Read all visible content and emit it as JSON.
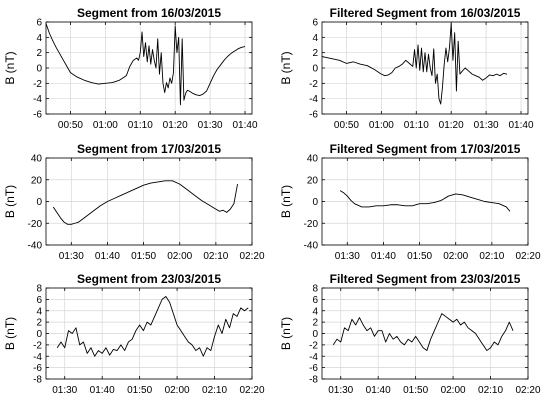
{
  "chart_data": [
    {
      "type": "line",
      "title": "Segment from 16/03/2015",
      "ylabel": "B (nT)",
      "xlabel": "",
      "x_unit": "HH:MM",
      "xlim": [
        "00:43",
        "01:42"
      ],
      "ylim": [
        -6,
        6
      ],
      "xticks": [
        "00:50",
        "01:00",
        "01:10",
        "01:20",
        "01:30",
        "01:40"
      ],
      "yticks": [
        -6,
        -4,
        -2,
        0,
        2,
        4,
        6
      ],
      "grid": true,
      "series": [
        {
          "x": [
            "00:43",
            "00:44",
            "00:45",
            "00:46",
            "00:47",
            "00:48",
            "00:49",
            "00:50",
            "00:52",
            "00:54",
            "00:56",
            "00:58",
            "01:00",
            "01:02",
            "01:04",
            "01:05",
            "01:06",
            "01:07",
            "01:08",
            "01:09",
            "01:09.5",
            "01:10",
            "01:10.5",
            "01:11",
            "01:11.5",
            "01:12",
            "01:12.5",
            "01:13",
            "01:13.5",
            "01:14",
            "01:14.5",
            "01:15",
            "01:15.5",
            "01:16",
            "01:16.5",
            "01:17",
            "01:17.5",
            "01:18",
            "01:18.5",
            "01:19",
            "01:19.5",
            "01:20",
            "01:20.5",
            "01:21",
            "01:21.5",
            "01:22",
            "01:22.5",
            "01:23",
            "01:23.5",
            "01:24",
            "01:25",
            "01:26",
            "01:27",
            "01:28",
            "01:29",
            "01:30",
            "01:31",
            "01:32",
            "01:33",
            "01:34",
            "01:35",
            "01:36",
            "01:37",
            "01:38",
            "01:39",
            "01:40"
          ],
          "y": [
            5.8,
            4.5,
            3.5,
            2.6,
            1.8,
            1.0,
            0.2,
            -0.6,
            -1.2,
            -1.6,
            -1.9,
            -2.1,
            -2.0,
            -1.9,
            -1.6,
            -1.3,
            -1.0,
            0.2,
            1.0,
            1.3,
            1.0,
            2.0,
            4.7,
            1.5,
            3.3,
            0.8,
            2.9,
            0.5,
            2.4,
            1.0,
            0.0,
            3.8,
            -0.8,
            2.0,
            -2.0,
            -3.2,
            -1.9,
            -2.6,
            -1.3,
            -2.0,
            -0.6,
            5.5,
            2.0,
            4.0,
            -4.8,
            3.8,
            -4.2,
            -3.3,
            -2.9,
            -3.0,
            -3.3,
            -3.5,
            -3.6,
            -3.4,
            -3.0,
            -2.0,
            -1.0,
            -0.2,
            0.4,
            1.0,
            1.5,
            1.9,
            2.2,
            2.5,
            2.7,
            2.8
          ]
        }
      ]
    },
    {
      "type": "line",
      "title": "Filtered Segment from 16/03/2015",
      "ylabel": "B (nT)",
      "xlabel": "",
      "x_unit": "HH:MM",
      "xlim": [
        "00:43",
        "01:42"
      ],
      "ylim": [
        -6,
        6
      ],
      "xticks": [
        "00:50",
        "01:00",
        "01:10",
        "01:20",
        "01:30",
        "01:40"
      ],
      "yticks": [
        -6,
        -4,
        -2,
        0,
        2,
        4,
        6
      ],
      "grid": true,
      "series": [
        {
          "x": [
            "00:43",
            "00:44",
            "00:46",
            "00:48",
            "00:50",
            "00:52",
            "00:54",
            "00:56",
            "00:58",
            "01:00",
            "01:01",
            "01:02",
            "01:03",
            "01:04",
            "01:05",
            "01:06",
            "01:07",
            "01:08",
            "01:09",
            "01:09.5",
            "01:10",
            "01:10.5",
            "01:11",
            "01:11.5",
            "01:12",
            "01:12.5",
            "01:13",
            "01:13.5",
            "01:14",
            "01:14.5",
            "01:15",
            "01:15.5",
            "01:16",
            "01:16.5",
            "01:17",
            "01:17.5",
            "01:18",
            "01:18.5",
            "01:19",
            "01:19.5",
            "01:20",
            "01:20.5",
            "01:21",
            "01:21.5",
            "01:22",
            "01:22.5",
            "01:23",
            "01:24",
            "01:25",
            "01:26",
            "01:27",
            "01:28",
            "01:29",
            "01:30",
            "01:31",
            "01:32",
            "01:33",
            "01:34",
            "01:35",
            "01:36"
          ],
          "y": [
            1.5,
            1.4,
            1.2,
            1.0,
            0.6,
            0.8,
            0.5,
            0.3,
            -0.2,
            -0.8,
            -1.0,
            -0.9,
            -0.6,
            0.0,
            0.2,
            0.5,
            1.0,
            0.6,
            0.2,
            2.4,
            0.0,
            3.0,
            -0.3,
            2.6,
            -0.5,
            2.0,
            -0.5,
            1.8,
            0.0,
            -1.0,
            2.5,
            -2.0,
            -0.8,
            -4.0,
            -4.7,
            -2.5,
            0.5,
            2.6,
            0.8,
            2.6,
            5.8,
            1.0,
            4.6,
            -3.0,
            3.5,
            -0.8,
            -0.5,
            0.0,
            -0.4,
            -0.8,
            -1.0,
            -1.2,
            -1.6,
            -1.3,
            -0.9,
            -1.0,
            -0.8,
            -1.0,
            -0.7,
            -0.8
          ]
        }
      ]
    },
    {
      "type": "line",
      "title": "Segment from 17/03/2015",
      "ylabel": "B (nT)",
      "xlabel": "",
      "x_unit": "HH:MM",
      "xlim": [
        "01:23",
        "02:20"
      ],
      "ylim": [
        -40,
        40
      ],
      "xticks": [
        "01:30",
        "01:40",
        "01:50",
        "02:00",
        "02:10",
        "02:20"
      ],
      "yticks": [
        -40,
        -20,
        0,
        20,
        40
      ],
      "grid": true,
      "series": [
        {
          "x": [
            "01:25",
            "01:26",
            "01:27",
            "01:28",
            "01:29",
            "01:30",
            "01:31",
            "01:32",
            "01:34",
            "01:36",
            "01:38",
            "01:40",
            "01:42",
            "01:44",
            "01:46",
            "01:48",
            "01:50",
            "01:52",
            "01:54",
            "01:56",
            "01:58",
            "02:00",
            "02:02",
            "02:04",
            "02:06",
            "02:08",
            "02:10",
            "02:11",
            "02:12",
            "02:13",
            "02:14",
            "02:15",
            "02:16"
          ],
          "y": [
            -5,
            -10,
            -15,
            -19,
            -21,
            -21,
            -20,
            -19,
            -14,
            -9,
            -4,
            0,
            3,
            6,
            9,
            12,
            15,
            17,
            18,
            19,
            19,
            16,
            11,
            6,
            1,
            -3,
            -7,
            -9,
            -8,
            -10,
            -7,
            -2,
            16
          ]
        }
      ]
    },
    {
      "type": "line",
      "title": "Filtered Segment from 17/03/2015",
      "ylabel": "B (nT)",
      "xlabel": "",
      "x_unit": "HH:MM",
      "xlim": [
        "01:23",
        "02:20"
      ],
      "ylim": [
        -40,
        40
      ],
      "xticks": [
        "01:30",
        "01:40",
        "01:50",
        "02:00",
        "02:10",
        "02:20"
      ],
      "yticks": [
        -40,
        -20,
        0,
        20,
        40
      ],
      "grid": true,
      "series": [
        {
          "x": [
            "01:28",
            "01:29",
            "01:30",
            "01:31",
            "01:32",
            "01:34",
            "01:36",
            "01:38",
            "01:40",
            "01:42",
            "01:44",
            "01:46",
            "01:48",
            "01:50",
            "01:52",
            "01:54",
            "01:56",
            "01:58",
            "02:00",
            "02:02",
            "02:04",
            "02:06",
            "02:08",
            "02:10",
            "02:12",
            "02:14",
            "02:15"
          ],
          "y": [
            10,
            8,
            5,
            1,
            -2,
            -5,
            -5,
            -4,
            -4,
            -3,
            -3,
            -4,
            -4,
            -2,
            -2,
            -1,
            1,
            5,
            7,
            6,
            4,
            2,
            0,
            -1,
            -2,
            -5,
            -9
          ]
        }
      ]
    },
    {
      "type": "line",
      "title": "Segment from 23/03/2015",
      "ylabel": "B (nT)",
      "xlabel": "",
      "x_unit": "HH:MM",
      "xlim": [
        "01:25",
        "02:20"
      ],
      "ylim": [
        -8,
        8
      ],
      "xticks": [
        "01:30",
        "01:40",
        "01:50",
        "02:00",
        "02:10",
        "02:20"
      ],
      "yticks": [
        -8,
        -6,
        -4,
        -2,
        0,
        2,
        4,
        6,
        8
      ],
      "grid": true,
      "series": [
        {
          "x": [
            "01:28",
            "01:29",
            "01:30",
            "01:31",
            "01:32",
            "01:33",
            "01:34",
            "01:35",
            "01:36",
            "01:37",
            "01:38",
            "01:39",
            "01:40",
            "01:41",
            "01:42",
            "01:43",
            "01:44",
            "01:45",
            "01:46",
            "01:47",
            "01:48",
            "01:49",
            "01:50",
            "01:51",
            "01:52",
            "01:53",
            "01:54",
            "01:55",
            "01:56",
            "01:57",
            "01:58",
            "01:59",
            "02:00",
            "02:01",
            "02:02",
            "02:03",
            "02:04",
            "02:05",
            "02:06",
            "02:07",
            "02:08",
            "02:09",
            "02:10",
            "02:11",
            "02:12",
            "02:13",
            "02:14",
            "02:15",
            "02:16",
            "02:17",
            "02:18",
            "02:19"
          ],
          "y": [
            -2.5,
            -1.5,
            -2.5,
            0.5,
            0.0,
            1.0,
            -2.0,
            -1.5,
            -3.5,
            -2.5,
            -4.0,
            -3.0,
            -3.5,
            -2.5,
            -3.8,
            -2.8,
            -3.0,
            -2.0,
            -3.0,
            -1.5,
            -1.0,
            0.5,
            1.5,
            0.5,
            2.0,
            1.5,
            3.0,
            4.5,
            6.0,
            6.5,
            5.5,
            3.5,
            1.5,
            0.5,
            -0.5,
            -1.5,
            -2.0,
            -3.0,
            -2.5,
            -4.0,
            -2.5,
            -3.0,
            -0.5,
            1.5,
            0.0,
            2.5,
            1.0,
            3.5,
            3.0,
            4.5,
            4.0,
            4.5
          ]
        }
      ]
    },
    {
      "type": "line",
      "title": "Filtered Segment from 23/03/2015",
      "ylabel": "B (nT)",
      "xlabel": "",
      "x_unit": "HH:MM",
      "xlim": [
        "01:25",
        "02:20"
      ],
      "ylim": [
        -8,
        8
      ],
      "xticks": [
        "01:30",
        "01:40",
        "01:50",
        "02:00",
        "02:10",
        "02:20"
      ],
      "yticks": [
        -8,
        -6,
        -4,
        -2,
        0,
        2,
        4,
        6,
        8
      ],
      "grid": true,
      "series": [
        {
          "x": [
            "01:28",
            "01:29",
            "01:30",
            "01:31",
            "01:32",
            "01:33",
            "01:34",
            "01:35",
            "01:36",
            "01:37",
            "01:38",
            "01:39",
            "01:40",
            "01:41",
            "01:42",
            "01:43",
            "01:44",
            "01:45",
            "01:46",
            "01:47",
            "01:48",
            "01:49",
            "01:50",
            "01:51",
            "01:52",
            "01:53",
            "01:54",
            "01:55",
            "01:56",
            "01:57",
            "01:58",
            "01:59",
            "02:00",
            "02:01",
            "02:02",
            "02:03",
            "02:04",
            "02:05",
            "02:06",
            "02:07",
            "02:08",
            "02:09",
            "02:10",
            "02:11",
            "02:12",
            "02:13",
            "02:14",
            "02:15",
            "02:16"
          ],
          "y": [
            -2.0,
            -1.0,
            -1.5,
            1.0,
            0.5,
            2.5,
            1.5,
            2.8,
            1.5,
            0.5,
            1.0,
            -0.5,
            0.5,
            0.5,
            -1.5,
            0.0,
            -1.0,
            -0.5,
            -1.5,
            -2.0,
            -1.0,
            -1.5,
            -0.5,
            -1.5,
            -2.5,
            -3.0,
            -1.0,
            0.5,
            2.0,
            3.5,
            3.0,
            2.5,
            2.0,
            2.5,
            1.5,
            2.0,
            1.0,
            0.5,
            0.0,
            -1.0,
            -2.0,
            -3.0,
            -2.5,
            -1.5,
            -2.0,
            -0.5,
            0.5,
            2.0,
            0.5
          ]
        }
      ]
    }
  ]
}
